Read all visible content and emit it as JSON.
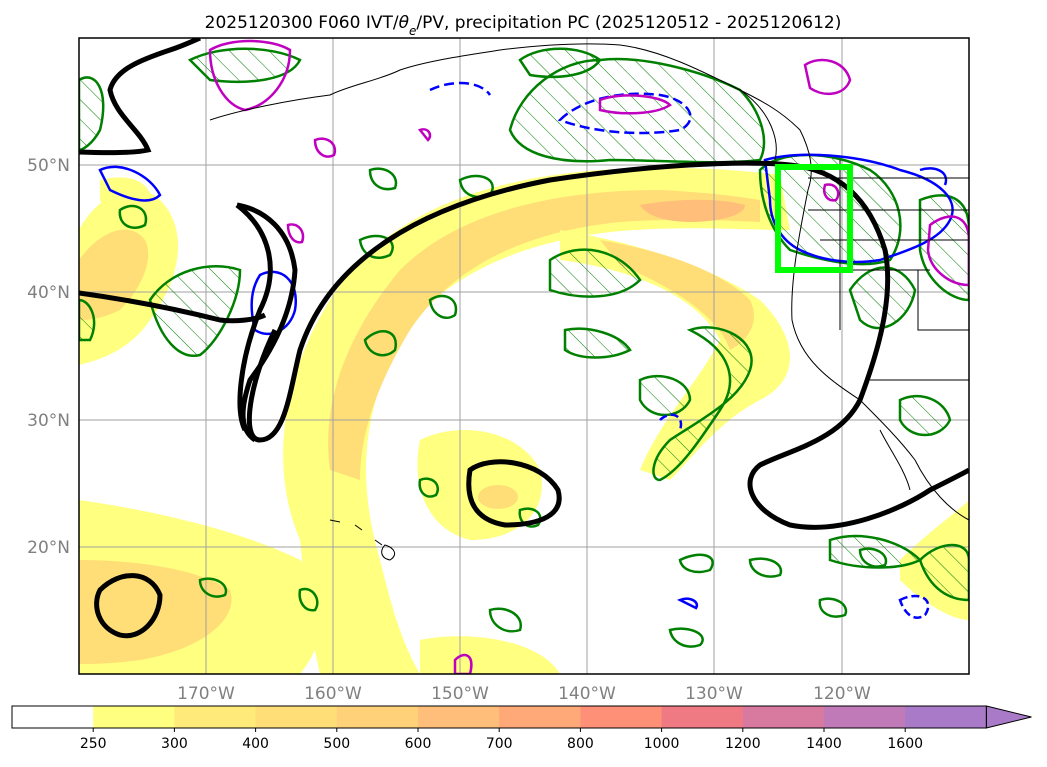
{
  "title": "2025120300 F060 IVT/",
  "title_theta": "θ",
  "title_sub": "e",
  "title_rest": "/PV, precipitation PC (2025120512 - 2025120612)",
  "map": {
    "lon_range": [
      -180,
      -110
    ],
    "lat_range": [
      10,
      60
    ],
    "lon_ticks": [
      {
        "value": -170,
        "label": "170°W"
      },
      {
        "value": -160,
        "label": "160°W"
      },
      {
        "value": -150,
        "label": "150°W"
      },
      {
        "value": -140,
        "label": "140°W"
      },
      {
        "value": -130,
        "label": "130°W"
      },
      {
        "value": -120,
        "label": "120°W"
      }
    ],
    "lat_ticks": [
      {
        "value": 50,
        "label": "50°N"
      },
      {
        "value": 40,
        "label": "40°N"
      },
      {
        "value": 30,
        "label": "30°N"
      },
      {
        "value": 20,
        "label": "20°N"
      }
    ],
    "gridlines": true,
    "highlight_box": {
      "lon": [
        -125,
        -119
      ],
      "lat": [
        42,
        50
      ],
      "color": "#00ff00"
    }
  },
  "colorbar": {
    "levels": [
      "250",
      "300",
      "400",
      "500",
      "600",
      "700",
      "800",
      "1000",
      "1200",
      "1400",
      "1600"
    ],
    "colors": [
      "#ffffff",
      "#ffff80",
      "#ffea7a",
      "#ffde78",
      "#ffd27a",
      "#ffbe7a",
      "#ffa878",
      "#ff9078",
      "#f07a84",
      "#d87aa0",
      "#c07ab8",
      "#a87ac8"
    ],
    "extend": "max"
  },
  "colors": {
    "ivt_fill": "#ffff80",
    "ivt_core": "#ffd27a",
    "pv_contour": "#000000",
    "theta_contour": "#008000",
    "blue_contour": "#0000ff",
    "magenta_contour": "#c000c0",
    "coastline": "#000000"
  }
}
